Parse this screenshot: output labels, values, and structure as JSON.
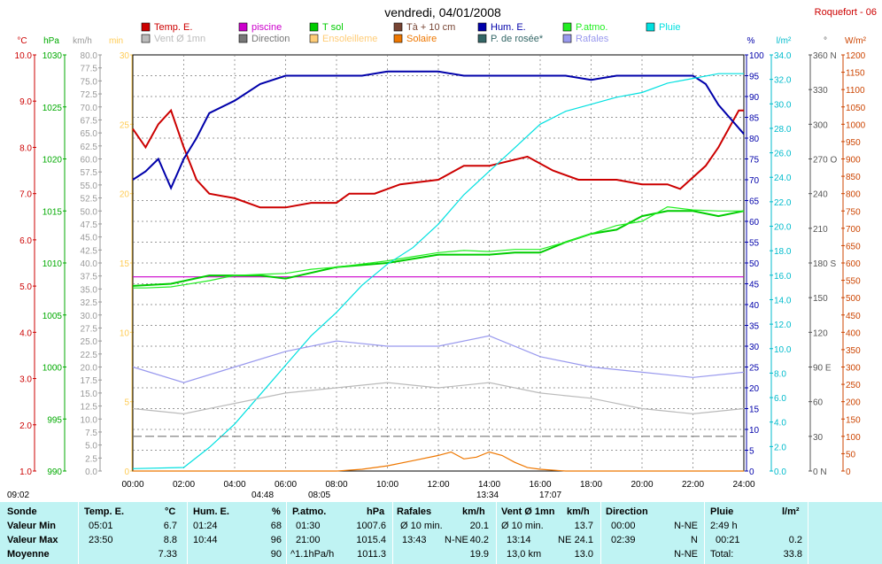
{
  "header": {
    "title": "vendredi, 04/01/2008",
    "station": "Roquefort - 06"
  },
  "legend": [
    {
      "label": "Temp. E.",
      "color": "#cc0000"
    },
    {
      "label": "piscine",
      "color": "#cc00cc"
    },
    {
      "label": "T sol",
      "color": "#00cc00"
    },
    {
      "label": "Tà + 10 cm",
      "color": "#774433"
    },
    {
      "label": "Hum. E.",
      "color": "#0000aa"
    },
    {
      "label": "P.atmo.",
      "color": "#22ee22"
    },
    {
      "label": "Pluie",
      "color": "#00e0e0"
    },
    {
      "label": "Vent Ø 1mn",
      "color": "#bbbbbb"
    },
    {
      "label": "Direction",
      "color": "#777777"
    },
    {
      "label": "Ensoleilleme",
      "color": "#ffcc77"
    },
    {
      "label": "Solaire",
      "color": "#ee7700"
    },
    {
      "label": "P. de rosée*",
      "color": "#336666"
    },
    {
      "label": "Rafales",
      "color": "#9999ee"
    }
  ],
  "axes": [
    {
      "unit": "°C",
      "color": "#cc0000",
      "ticks": [
        "10.0",
        "9.0",
        "8.0",
        "7.0",
        "6.0",
        "5.0",
        "4.0",
        "3.0",
        "2.0",
        "1.0"
      ]
    },
    {
      "unit": "hPa",
      "color": "#00aa00",
      "ticks": [
        "1030",
        "1025",
        "1020",
        "1015",
        "1010",
        "1005",
        "1000",
        "995",
        "990"
      ]
    },
    {
      "unit": "km/h",
      "color": "#999999",
      "ticks": [
        "80.0",
        "77.5",
        "75.0",
        "72.5",
        "70.0",
        "67.5",
        "65.0",
        "62.5",
        "60.0",
        "57.5",
        "55.0",
        "52.5",
        "50.0",
        "47.5",
        "45.0",
        "42.5",
        "40.0",
        "37.5",
        "35.0",
        "32.5",
        "30.0",
        "27.5",
        "25.0",
        "22.5",
        "20.0",
        "17.5",
        "15.0",
        "12.5",
        "10.0",
        "7.5",
        "5.0",
        "2.5",
        "0.0"
      ]
    },
    {
      "unit": "min",
      "color": "#ffcc55",
      "ticks": [
        "30",
        "25",
        "20",
        "15",
        "10",
        "5",
        "0"
      ]
    },
    {
      "unit": "%",
      "color": "#0000aa",
      "ticks": [
        "100",
        "95",
        "90",
        "85",
        "80",
        "75",
        "70",
        "65",
        "60",
        "55",
        "50",
        "45",
        "40",
        "35",
        "30",
        "25",
        "20",
        "15",
        "10",
        "5",
        "0"
      ]
    },
    {
      "unit": "l/m²",
      "color": "#00bbcc",
      "ticks": [
        "34.0",
        "32.0",
        "30.0",
        "28.0",
        "26.0",
        "24.0",
        "22.0",
        "20.0",
        "18.0",
        "16.0",
        "14.0",
        "12.0",
        "10.0",
        "8.0",
        "6.0",
        "4.0",
        "2.0",
        "0.0"
      ]
    },
    {
      "unit": "°",
      "color": "#555555",
      "ticks": [
        "360 N",
        "330",
        "300",
        "270 O",
        "240",
        "210",
        "180 S",
        "150",
        "120",
        "90 E",
        "60",
        "30",
        "0 N"
      ]
    },
    {
      "unit": "W/m²",
      "color": "#cc4400",
      "ticks": [
        "1200",
        "1150",
        "1100",
        "1050",
        "1000",
        "950",
        "900",
        "850",
        "800",
        "750",
        "700",
        "650",
        "600",
        "550",
        "500",
        "450",
        "400",
        "350",
        "300",
        "250",
        "200",
        "150",
        "100",
        "50",
        "0"
      ]
    }
  ],
  "time_ticks": [
    "00:00",
    "02:00",
    "04:00",
    "06:00",
    "08:00",
    "10:00",
    "12:00",
    "14:00",
    "16:00",
    "18:00",
    "20:00",
    "22:00",
    "24:00"
  ],
  "sun_markers": [
    "09:02",
    "04:48",
    "08:05",
    "13:34",
    "17:07"
  ],
  "chart_data": {
    "type": "line",
    "x_range": [
      "00:00",
      "24:00"
    ],
    "series": [
      {
        "name": "Temp. E.",
        "unit": "°C",
        "color": "#cc0000",
        "points": [
          [
            0,
            8.4
          ],
          [
            0.5,
            8.0
          ],
          [
            1.0,
            8.5
          ],
          [
            1.5,
            8.8
          ],
          [
            2.0,
            8.0
          ],
          [
            2.5,
            7.3
          ],
          [
            3.0,
            7.0
          ],
          [
            4.0,
            6.9
          ],
          [
            5.0,
            6.7
          ],
          [
            6.0,
            6.7
          ],
          [
            7.0,
            6.8
          ],
          [
            8.0,
            6.8
          ],
          [
            8.5,
            7.0
          ],
          [
            9.5,
            7.0
          ],
          [
            10.5,
            7.2
          ],
          [
            12.0,
            7.3
          ],
          [
            13.0,
            7.6
          ],
          [
            14.0,
            7.6
          ],
          [
            15.5,
            7.8
          ],
          [
            16.5,
            7.5
          ],
          [
            17.5,
            7.3
          ],
          [
            19.0,
            7.3
          ],
          [
            20.0,
            7.2
          ],
          [
            21.0,
            7.2
          ],
          [
            21.5,
            7.1
          ],
          [
            22.5,
            7.6
          ],
          [
            23.0,
            8.0
          ],
          [
            23.8,
            8.8
          ],
          [
            24.0,
            8.8
          ]
        ]
      },
      {
        "name": "piscine",
        "unit": "°C",
        "color": "#cc00cc",
        "points": [
          [
            0,
            5.2
          ],
          [
            24,
            5.2
          ]
        ]
      },
      {
        "name": "T sol",
        "unit": "hPa",
        "color": "#00cc00",
        "points": [
          [
            0,
            1007.8
          ],
          [
            1.5,
            1008
          ],
          [
            3.0,
            1008.8
          ],
          [
            5.0,
            1008.8
          ],
          [
            6.0,
            1008.5
          ],
          [
            8.0,
            1009.6
          ],
          [
            10.0,
            1010.0
          ],
          [
            12.0,
            1010.8
          ],
          [
            14.0,
            1010.8
          ],
          [
            15.0,
            1011.0
          ],
          [
            16.0,
            1011.0
          ],
          [
            17.0,
            1012.0
          ],
          [
            18.0,
            1012.8
          ],
          [
            19.0,
            1013.2
          ],
          [
            20.0,
            1014.5
          ],
          [
            21.0,
            1015.0
          ],
          [
            22.0,
            1015.0
          ],
          [
            23.0,
            1014.5
          ],
          [
            24.0,
            1015.0
          ]
        ]
      },
      {
        "name": "P.atmo.",
        "unit": "hPa",
        "color": "#22ee22",
        "points": [
          [
            0,
            1007.6
          ],
          [
            0.5,
            1007.6
          ],
          [
            1.5,
            1007.7
          ],
          [
            2.0,
            1007.9
          ],
          [
            3.0,
            1008.3
          ],
          [
            4.0,
            1008.8
          ],
          [
            5.0,
            1008.9
          ],
          [
            6.0,
            1009.0
          ],
          [
            7.0,
            1009.4
          ],
          [
            8.0,
            1009.6
          ],
          [
            9.0,
            1009.9
          ],
          [
            10.0,
            1010.2
          ],
          [
            11.0,
            1010.6
          ],
          [
            12.0,
            1011.0
          ],
          [
            13.0,
            1011.2
          ],
          [
            14.0,
            1011.1
          ],
          [
            15.0,
            1011.3
          ],
          [
            16.0,
            1011.3
          ],
          [
            17.0,
            1012.0
          ],
          [
            18.0,
            1012.8
          ],
          [
            19.0,
            1013.6
          ],
          [
            20.0,
            1014.0
          ],
          [
            21.0,
            1015.4
          ],
          [
            22.0,
            1015.1
          ],
          [
            23.0,
            1015.0
          ],
          [
            24.0,
            1015.0
          ]
        ]
      },
      {
        "name": "Hum. E.",
        "unit": "%",
        "color": "#0000aa",
        "points": [
          [
            0,
            70
          ],
          [
            0.5,
            72
          ],
          [
            1.0,
            75
          ],
          [
            1.5,
            68
          ],
          [
            2.0,
            75
          ],
          [
            2.5,
            80
          ],
          [
            3.0,
            86
          ],
          [
            4.0,
            89
          ],
          [
            5.0,
            93
          ],
          [
            6.0,
            95
          ],
          [
            8.0,
            95
          ],
          [
            9.0,
            95
          ],
          [
            10.0,
            96
          ],
          [
            12.0,
            96
          ],
          [
            13.0,
            95
          ],
          [
            15.0,
            95
          ],
          [
            16.0,
            95
          ],
          [
            17.0,
            95
          ],
          [
            18.0,
            94
          ],
          [
            19.0,
            95
          ],
          [
            20.0,
            95
          ],
          [
            21.0,
            95
          ],
          [
            22.0,
            95
          ],
          [
            22.5,
            93
          ],
          [
            23.0,
            88
          ],
          [
            24.0,
            81
          ]
        ]
      },
      {
        "name": "Pluie",
        "unit": "l/m²",
        "color": "#00e0e0",
        "points": [
          [
            0,
            0.2
          ],
          [
            2.0,
            0.3
          ],
          [
            3.0,
            2.0
          ],
          [
            4.0,
            4.0
          ],
          [
            5.0,
            6.5
          ],
          [
            6.0,
            9.0
          ],
          [
            7.0,
            11.5
          ],
          [
            8.0,
            13.5
          ],
          [
            9.0,
            15.8
          ],
          [
            10.0,
            17.6
          ],
          [
            11.0,
            19.0
          ],
          [
            12.0,
            21.0
          ],
          [
            13.0,
            23.5
          ],
          [
            14.0,
            25.5
          ],
          [
            15.0,
            27.5
          ],
          [
            16.0,
            29.5
          ],
          [
            17.0,
            30.6
          ],
          [
            18.0,
            31.2
          ],
          [
            19.0,
            31.8
          ],
          [
            20.0,
            32.2
          ],
          [
            21.0,
            33.0
          ],
          [
            22.0,
            33.4
          ],
          [
            23.0,
            33.8
          ],
          [
            24.0,
            33.8
          ]
        ]
      },
      {
        "name": "Vent Ø 1mn",
        "unit": "km/h",
        "color": "#bbbbbb",
        "points": [
          [
            0,
            12
          ],
          [
            2,
            11
          ],
          [
            4,
            13
          ],
          [
            6,
            15
          ],
          [
            8,
            16
          ],
          [
            10,
            17
          ],
          [
            12,
            16
          ],
          [
            14,
            17
          ],
          [
            16,
            15
          ],
          [
            18,
            14
          ],
          [
            20,
            12
          ],
          [
            22,
            11
          ],
          [
            24,
            12
          ]
        ]
      },
      {
        "name": "Rafales",
        "unit": "km/h",
        "color": "#9999ee",
        "points": [
          [
            0,
            20
          ],
          [
            2,
            17
          ],
          [
            4,
            20
          ],
          [
            6,
            23
          ],
          [
            8,
            25
          ],
          [
            10,
            24
          ],
          [
            12,
            24
          ],
          [
            14,
            26
          ],
          [
            16,
            22
          ],
          [
            18,
            20
          ],
          [
            20,
            19
          ],
          [
            22,
            18
          ],
          [
            24,
            19
          ]
        ]
      },
      {
        "name": "Direction",
        "unit": "°",
        "color": "#777777",
        "points": [
          [
            0,
            30
          ],
          [
            24,
            30
          ]
        ]
      },
      {
        "name": "Solaire",
        "unit": "W/m²",
        "color": "#ee7700",
        "points": [
          [
            0,
            0
          ],
          [
            8,
            0
          ],
          [
            9,
            5
          ],
          [
            10,
            15
          ],
          [
            11,
            30
          ],
          [
            12,
            45
          ],
          [
            12.5,
            55
          ],
          [
            13,
            35
          ],
          [
            13.5,
            40
          ],
          [
            14,
            55
          ],
          [
            14.5,
            45
          ],
          [
            15,
            25
          ],
          [
            15.5,
            10
          ],
          [
            16,
            5
          ],
          [
            17,
            0
          ],
          [
            24,
            0
          ]
        ]
      }
    ]
  },
  "stats": {
    "headers": {
      "sonde": "Sonde",
      "temp": "Temp. E.",
      "temp_u": "°C",
      "hum": "Hum. E.",
      "hum_u": "%",
      "patmo": "P.atmo.",
      "patmo_u": "hPa",
      "raf": "Rafales",
      "raf_u": "km/h",
      "vent": "Vent Ø 1mn",
      "vent_u": "km/h",
      "dir": "Direction",
      "pluie": "Pluie",
      "pluie_u": "l/m²"
    },
    "row_labels": [
      "Valeur Min",
      "Valeur Max",
      "Moyenne"
    ],
    "temp": [
      [
        "05:01",
        "6.7"
      ],
      [
        "23:50",
        "8.8"
      ],
      [
        "",
        "7.33"
      ]
    ],
    "hum": [
      [
        "01:24",
        "68"
      ],
      [
        "10:44",
        "96"
      ],
      [
        "",
        "90"
      ]
    ],
    "patmo": [
      [
        "01:30",
        "1007.6"
      ],
      [
        "21:00",
        "1015.4"
      ],
      [
        "^1.1hPa/h",
        "1011.3"
      ]
    ],
    "raf": [
      [
        "Ø 10 min.",
        "",
        "20.1"
      ],
      [
        "13:43",
        "N-NE",
        "40.2"
      ],
      [
        "",
        "",
        "19.9"
      ]
    ],
    "vent": [
      [
        "Ø 10 min.",
        "",
        "13.7"
      ],
      [
        "13:14",
        "NE",
        "24.1"
      ],
      [
        "13,0 km",
        "",
        "13.0"
      ]
    ],
    "dir": [
      [
        "00:00",
        "N-NE"
      ],
      [
        "02:39",
        "N"
      ],
      [
        "",
        "N-NE"
      ]
    ],
    "pluie": [
      [
        "2:49 h",
        ""
      ],
      [
        "00:21",
        "0.2"
      ],
      [
        "Total:",
        "33.8"
      ]
    ]
  }
}
